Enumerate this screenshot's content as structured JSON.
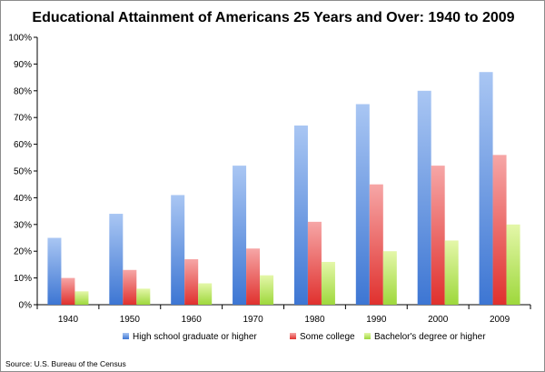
{
  "chart_data": {
    "type": "bar",
    "title": "Educational Attainment of Americans 25 Years and Over: 1940 to 2009",
    "categories": [
      "1940",
      "1950",
      "1960",
      "1970",
      "1980",
      "1990",
      "2000",
      "2009"
    ],
    "series": [
      {
        "name": "High school graduate or higher",
        "values": [
          25,
          34,
          41,
          52,
          67,
          75,
          80,
          87
        ],
        "color_top": "#a9c6f3",
        "color_bottom": "#3d76d3"
      },
      {
        "name": "Some college",
        "values": [
          10,
          13,
          17,
          21,
          31,
          45,
          52,
          56
        ],
        "color_top": "#f6a6a6",
        "color_bottom": "#e0312e"
      },
      {
        "name": "Bachelor's degree or higher",
        "values": [
          5,
          6,
          8,
          11,
          16,
          20,
          24,
          30
        ],
        "color_top": "#e4f7a9",
        "color_bottom": "#9ed83c"
      }
    ],
    "ylim": [
      0,
      100
    ],
    "yticks": [
      "0%",
      "10%",
      "20%",
      "30%",
      "40%",
      "50%",
      "60%",
      "70%",
      "80%",
      "90%",
      "100%"
    ],
    "grid": false,
    "legend": "bottom",
    "source": "Source: U.S. Bureau of the Census"
  }
}
